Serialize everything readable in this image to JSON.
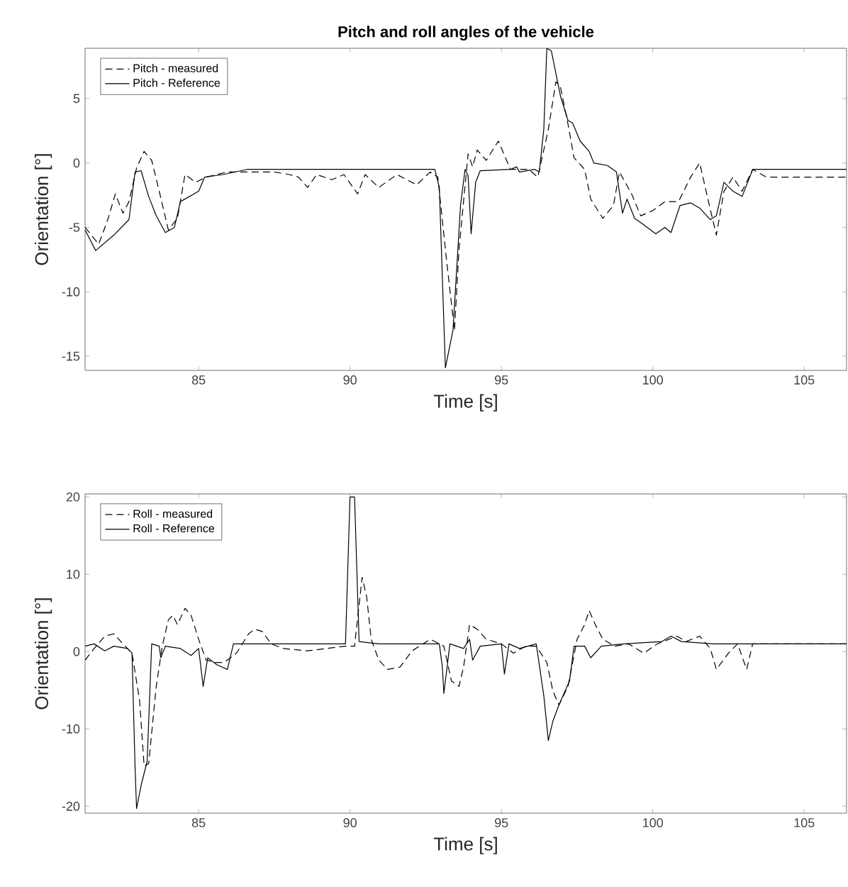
{
  "chart_data": [
    {
      "type": "line",
      "title": "Pitch and roll angles of the vehicle",
      "xlabel": "Time [s]",
      "ylabel": "Orientation [°]",
      "xlim": [
        81.25,
        106.4
      ],
      "ylim": [
        -16.1,
        8.9
      ],
      "xticks": [
        85,
        90,
        95,
        100,
        105
      ],
      "yticks": [
        -15,
        -10,
        -5,
        0,
        5
      ],
      "legend": "top left",
      "grid": false,
      "series": [
        {
          "name": "Pitch - measured",
          "color": "#000000",
          "line_style": "dashed",
          "x": [
            81.25,
            81.7,
            82.0,
            82.25,
            82.5,
            82.7,
            82.95,
            83.2,
            83.45,
            83.7,
            84.0,
            84.3,
            84.55,
            84.9,
            85.25,
            85.95,
            86.9,
            87.5,
            88.0,
            88.3,
            88.6,
            88.9,
            89.4,
            89.8,
            90.25,
            90.5,
            90.95,
            91.55,
            92.2,
            92.65,
            92.9,
            93.2,
            93.45,
            93.6,
            93.75,
            93.9,
            94.05,
            94.2,
            94.5,
            94.9,
            95.3,
            95.9,
            96.2,
            96.55,
            96.8,
            96.95,
            97.2,
            97.4,
            97.75,
            97.95,
            98.35,
            98.7,
            98.9,
            99.3,
            99.6,
            100.0,
            100.4,
            100.85,
            101.25,
            101.55,
            101.8,
            102.1,
            102.35,
            102.65,
            102.95,
            103.3,
            103.75,
            106.4
          ],
          "values": [
            -5.0,
            -6.3,
            -4.4,
            -2.4,
            -3.9,
            -3.0,
            -0.4,
            0.9,
            0.2,
            -2.2,
            -5.2,
            -4.3,
            -0.9,
            -1.5,
            -1.1,
            -0.7,
            -0.7,
            -0.7,
            -0.9,
            -1.1,
            -1.9,
            -0.9,
            -1.3,
            -0.9,
            -2.4,
            -0.9,
            -1.9,
            -0.9,
            -1.7,
            -0.7,
            -1.1,
            -7.8,
            -13.0,
            -6.7,
            -3.0,
            0.7,
            -0.3,
            1.0,
            0.2,
            1.7,
            -0.5,
            -0.5,
            -1.1,
            2.6,
            6.3,
            5.9,
            3.0,
            0.4,
            -0.5,
            -2.8,
            -4.3,
            -3.3,
            -0.7,
            -2.4,
            -4.1,
            -3.7,
            -3.0,
            -3.0,
            -1.1,
            0.0,
            -2.6,
            -5.6,
            -2.2,
            -1.1,
            -2.2,
            -0.5,
            -1.1,
            -1.1
          ]
        },
        {
          "name": "Pitch - Reference",
          "color": "#000000",
          "line_style": "solid",
          "x": [
            81.25,
            81.6,
            82.2,
            82.7,
            82.9,
            83.1,
            83.35,
            83.6,
            83.9,
            84.2,
            84.4,
            85.0,
            85.2,
            85.8,
            86.6,
            87.5,
            92.8,
            92.95,
            93.15,
            93.4,
            93.65,
            93.8,
            93.9,
            94.0,
            94.15,
            94.3,
            95.3,
            95.5,
            95.6,
            96.1,
            96.25,
            96.4,
            96.5,
            96.65,
            96.95,
            97.2,
            97.35,
            97.6,
            97.9,
            98.05,
            98.5,
            98.8,
            99.0,
            99.15,
            99.4,
            99.7,
            100.1,
            100.4,
            100.6,
            100.9,
            101.25,
            101.55,
            101.9,
            102.1,
            102.35,
            102.65,
            102.95,
            103.3,
            106.4
          ],
          "values": [
            -5.2,
            -6.8,
            -5.6,
            -4.4,
            -0.7,
            -0.6,
            -2.6,
            -4.1,
            -5.4,
            -5.0,
            -3.0,
            -2.2,
            -1.1,
            -0.9,
            -0.5,
            -0.5,
            -0.5,
            -1.9,
            -15.9,
            -13.0,
            -3.3,
            -0.5,
            -1.0,
            -5.5,
            -1.5,
            -0.6,
            -0.5,
            -0.3,
            -0.7,
            -0.5,
            -0.7,
            2.6,
            8.9,
            8.7,
            5.2,
            3.3,
            3.1,
            1.7,
            0.9,
            0.0,
            -0.2,
            -0.7,
            -3.9,
            -2.8,
            -4.3,
            -4.8,
            -5.5,
            -5.0,
            -5.4,
            -3.3,
            -3.1,
            -3.5,
            -4.4,
            -4.1,
            -1.5,
            -2.2,
            -2.6,
            -0.5,
            -0.5
          ]
        }
      ]
    },
    {
      "type": "line",
      "xlabel": "Time [s]",
      "ylabel": "Orientation [°]",
      "xlim": [
        81.25,
        106.4
      ],
      "ylim": [
        -20.9,
        20.4
      ],
      "xticks": [
        85,
        90,
        95,
        100,
        105
      ],
      "yticks": [
        -20,
        -10,
        0,
        10,
        20
      ],
      "legend": "top left",
      "grid": false,
      "series": [
        {
          "name": "Roll - measured",
          "color": "#000000",
          "line_style": "dashed",
          "x": [
            81.25,
            81.55,
            81.9,
            82.2,
            82.5,
            82.8,
            83.05,
            83.2,
            83.35,
            83.6,
            83.8,
            84.0,
            84.15,
            84.3,
            84.55,
            84.75,
            85.0,
            85.25,
            85.55,
            85.85,
            86.25,
            86.65,
            86.85,
            87.1,
            87.4,
            87.8,
            88.6,
            89.85,
            90.15,
            90.4,
            90.55,
            90.7,
            90.95,
            91.25,
            91.65,
            92.05,
            92.65,
            93.1,
            93.35,
            93.6,
            93.75,
            93.95,
            94.2,
            94.5,
            95.0,
            95.4,
            95.8,
            96.15,
            96.5,
            96.7,
            96.9,
            97.2,
            97.5,
            97.75,
            97.9,
            98.1,
            98.35,
            98.75,
            99.2,
            99.7,
            100.15,
            100.8,
            101.1,
            101.55,
            101.9,
            102.1,
            102.5,
            102.8,
            103.1,
            103.3,
            106.4
          ],
          "values": [
            -1.1,
            0.4,
            2.0,
            2.3,
            1.0,
            -0.2,
            -6.3,
            -14.8,
            -14.5,
            -4.5,
            0.7,
            4.1,
            4.7,
            3.5,
            5.6,
            4.7,
            1.6,
            -1.1,
            -1.4,
            -1.4,
            -0.2,
            2.3,
            2.9,
            2.6,
            1.0,
            0.4,
            0.1,
            0.7,
            0.7,
            9.6,
            7.1,
            1.6,
            -1.1,
            -2.3,
            -2.0,
            0.1,
            1.6,
            0.7,
            -3.8,
            -4.5,
            -2.0,
            3.5,
            2.9,
            1.6,
            1.0,
            -0.2,
            0.7,
            0.7,
            -1.4,
            -5.1,
            -6.9,
            -4.5,
            1.6,
            3.5,
            5.3,
            3.5,
            1.6,
            0.7,
            1.0,
            -0.2,
            1.0,
            2.0,
            1.3,
            2.0,
            0.4,
            -2.3,
            -0.2,
            1.0,
            -2.3,
            1.0,
            1.0
          ]
        },
        {
          "name": "Roll - Reference",
          "color": "#000000",
          "line_style": "solid",
          "x": [
            81.25,
            81.55,
            81.9,
            82.2,
            82.65,
            82.8,
            82.9,
            82.95,
            83.1,
            83.3,
            83.45,
            83.7,
            83.75,
            83.9,
            84.4,
            84.75,
            85.0,
            85.15,
            85.3,
            85.6,
            85.95,
            86.15,
            86.4,
            89.85,
            90.0,
            90.15,
            90.3,
            90.95,
            92.95,
            93.05,
            93.1,
            93.3,
            93.75,
            93.95,
            94.05,
            94.3,
            95.0,
            95.1,
            95.25,
            95.6,
            96.15,
            96.4,
            96.55,
            96.7,
            96.9,
            97.25,
            97.4,
            97.75,
            97.95,
            98.3,
            99.05,
            100.3,
            100.6,
            100.95,
            102.0,
            103.1,
            106.4
          ],
          "values": [
            0.7,
            1.0,
            0.1,
            0.7,
            0.4,
            -0.2,
            -14.8,
            -20.3,
            -17.3,
            -14.2,
            1.0,
            0.7,
            -0.8,
            0.7,
            0.4,
            -0.5,
            0.4,
            -4.5,
            -0.8,
            -1.7,
            -2.3,
            1.0,
            1.0,
            1.0,
            20.0,
            20.0,
            1.3,
            1.0,
            1.0,
            -2.0,
            -5.4,
            1.0,
            0.4,
            1.6,
            -1.1,
            0.7,
            1.0,
            -2.9,
            1.0,
            0.4,
            1.0,
            -5.7,
            -11.5,
            -9.0,
            -6.9,
            -3.8,
            0.7,
            0.7,
            -0.8,
            0.7,
            1.0,
            1.3,
            2.0,
            1.3,
            1.0,
            1.0,
            1.0
          ]
        }
      ]
    }
  ]
}
